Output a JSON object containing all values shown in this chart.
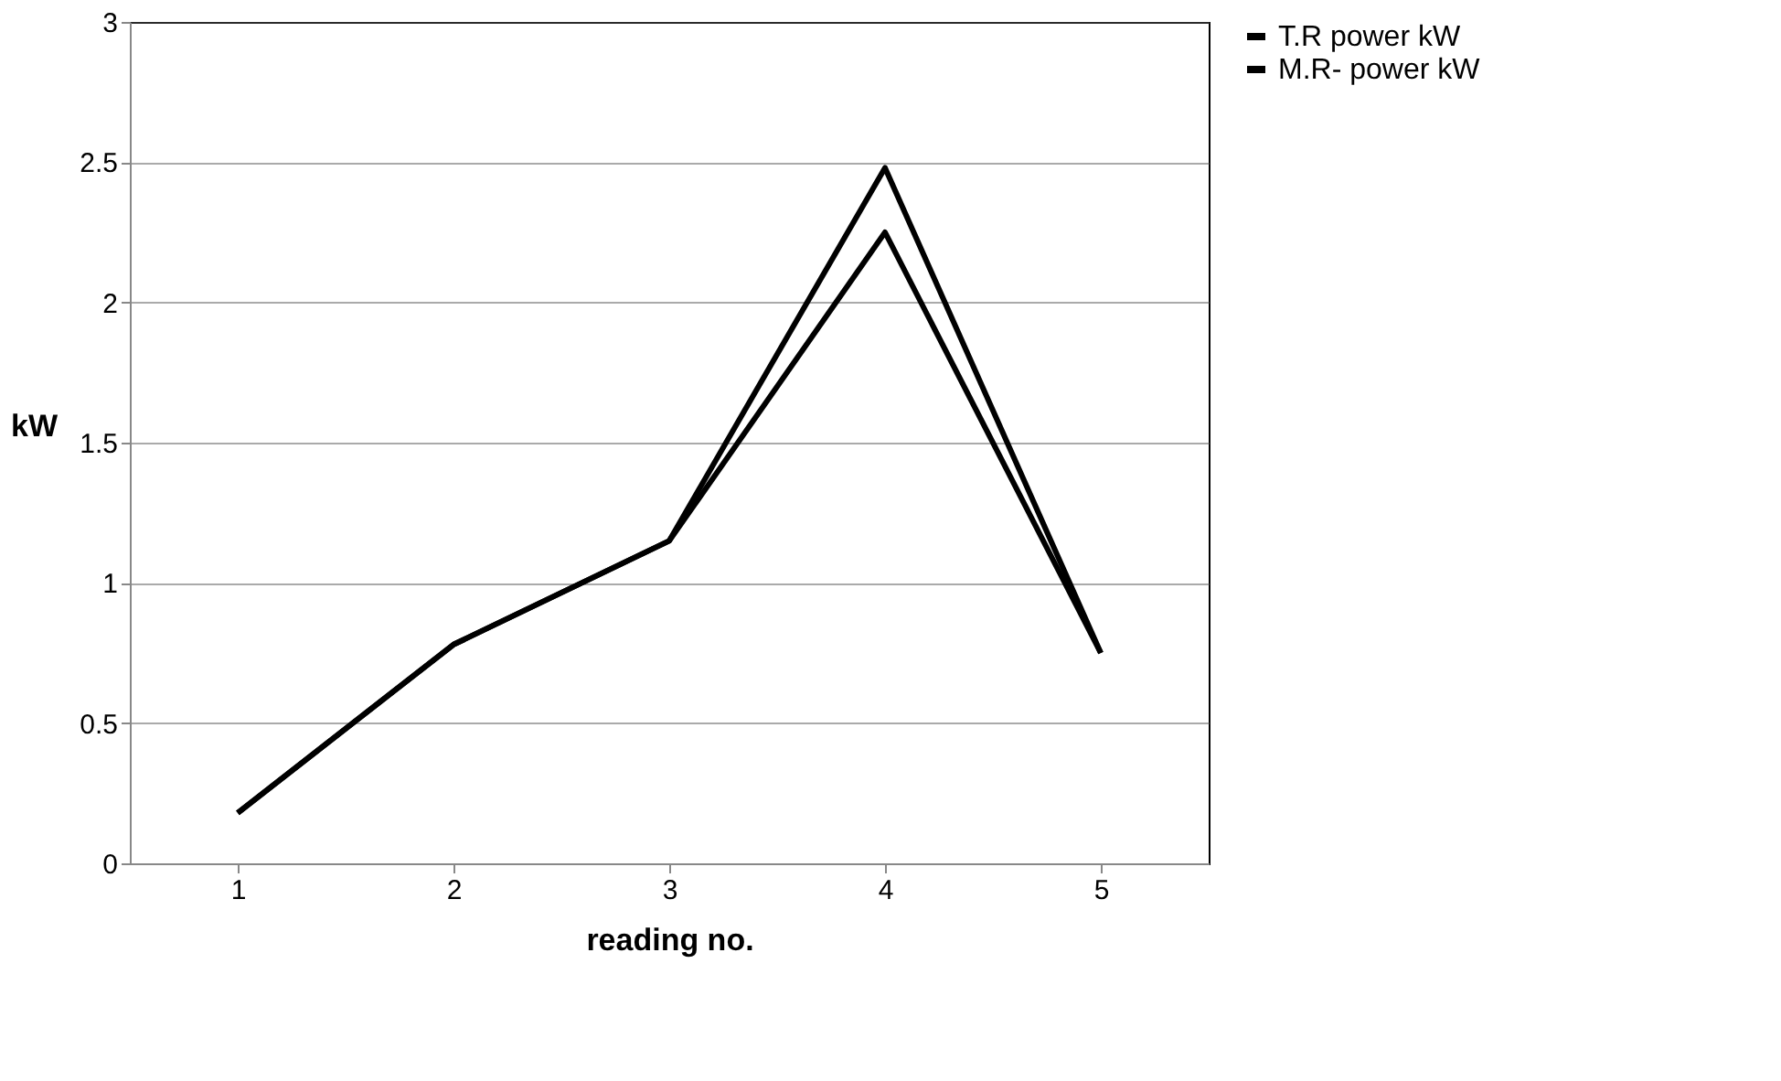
{
  "chart_data": {
    "type": "line",
    "xlabel": "reading no.",
    "ylabel": "kW",
    "categories": [
      "1",
      "2",
      "3",
      "4",
      "5"
    ],
    "series": [
      {
        "name": "T.R power kW",
        "color": "#000000",
        "values": [
          0.18,
          0.78,
          1.15,
          2.48,
          0.75
        ]
      },
      {
        "name": "M.R- power kW",
        "color": "#000000",
        "values": [
          0.18,
          0.78,
          1.15,
          2.25,
          0.75
        ]
      }
    ],
    "ylim": [
      0,
      3
    ],
    "yticks": [
      0,
      0.5,
      1,
      1.5,
      2,
      2.5,
      3
    ],
    "grid": "y",
    "legend": "right",
    "marker": "none",
    "line_style": "solid"
  }
}
